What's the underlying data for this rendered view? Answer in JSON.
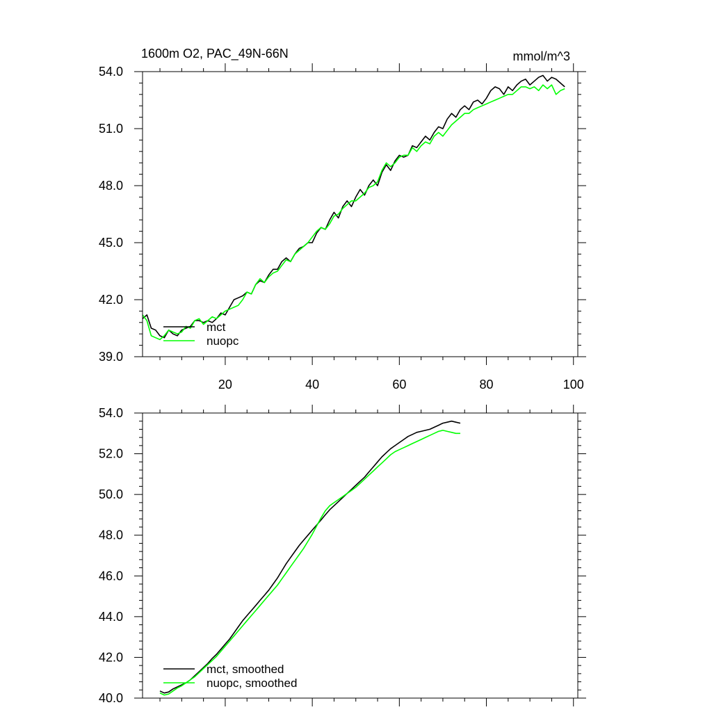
{
  "figure": {
    "title_left": "1600m O2, PAC_49N-66N",
    "title_right": "mmol/m^3"
  },
  "chart_data": [
    {
      "type": "line",
      "panel": "top",
      "xlim": [
        1,
        101
      ],
      "ylim": [
        39,
        54
      ],
      "x_ticks": [
        20,
        40,
        60,
        80,
        100
      ],
      "y_ticks": [
        39,
        42,
        45,
        48,
        51,
        54
      ],
      "y_tick_labels": [
        "39.0",
        "42.0",
        "45.0",
        "48.0",
        "51.0",
        "54.0"
      ],
      "legend_position": "bottom-left",
      "series": [
        {
          "name": "mct",
          "color": "#000000",
          "x_start": 1,
          "values": [
            41.0,
            41.2,
            40.5,
            40.4,
            40.1,
            40.0,
            40.4,
            40.2,
            40.1,
            40.4,
            40.5,
            40.6,
            40.9,
            40.9,
            40.8,
            40.9,
            40.8,
            41.0,
            41.3,
            41.2,
            41.6,
            42.0,
            42.1,
            42.2,
            42.4,
            42.3,
            42.8,
            43.0,
            42.9,
            43.3,
            43.6,
            43.6,
            44.0,
            44.2,
            44.0,
            44.4,
            44.7,
            44.8,
            45.0,
            45.0,
            45.5,
            45.8,
            45.7,
            46.2,
            46.6,
            46.3,
            46.9,
            47.2,
            46.9,
            47.4,
            47.8,
            47.5,
            48.0,
            48.3,
            48.0,
            48.7,
            49.1,
            48.8,
            49.3,
            49.6,
            49.5,
            49.6,
            50.1,
            50.0,
            50.3,
            50.6,
            50.4,
            50.8,
            51.1,
            51.0,
            51.5,
            51.8,
            51.6,
            52.0,
            52.2,
            52.0,
            52.4,
            52.5,
            52.3,
            52.6,
            53.0,
            53.2,
            53.1,
            52.8,
            53.2,
            53.0,
            53.3,
            53.5,
            53.6,
            53.3,
            53.5,
            53.7,
            53.8,
            53.5,
            53.7,
            53.6,
            53.4,
            53.2
          ]
        },
        {
          "name": "nuopc",
          "color": "#00ff00",
          "x_start": 1,
          "values": [
            41.2,
            40.9,
            40.1,
            40.0,
            39.9,
            40.1,
            40.4,
            40.3,
            40.2,
            40.3,
            40.6,
            40.5,
            40.9,
            41.0,
            40.7,
            40.9,
            41.1,
            41.0,
            41.2,
            41.4,
            41.5,
            41.6,
            41.7,
            42.0,
            42.4,
            42.3,
            42.8,
            43.1,
            42.9,
            43.2,
            43.4,
            43.5,
            43.8,
            44.1,
            44.0,
            44.4,
            44.6,
            44.8,
            45.0,
            45.3,
            45.6,
            45.8,
            45.7,
            46.0,
            46.4,
            46.5,
            46.8,
            47.0,
            47.2,
            47.2,
            47.4,
            47.6,
            47.9,
            48.0,
            48.2,
            48.8,
            49.2,
            49.0,
            49.2,
            49.5,
            49.6,
            49.6,
            50.0,
            49.8,
            50.1,
            50.3,
            50.2,
            50.6,
            50.8,
            50.6,
            50.9,
            51.2,
            51.4,
            51.6,
            51.8,
            51.8,
            52.0,
            52.1,
            52.2,
            52.3,
            52.4,
            52.5,
            52.6,
            52.7,
            52.8,
            52.8,
            53.0,
            53.2,
            53.2,
            53.1,
            53.2,
            53.0,
            53.3,
            53.1,
            53.3,
            52.8,
            53.0,
            53.1
          ]
        }
      ]
    },
    {
      "type": "line",
      "panel": "bottom",
      "xlim": [
        1,
        101
      ],
      "ylim": [
        40,
        54
      ],
      "x_ticks": [
        20,
        40,
        60,
        80,
        100
      ],
      "y_ticks": [
        40,
        42,
        44,
        46,
        48,
        50,
        52,
        54
      ],
      "y_tick_labels": [
        "40.0",
        "42.0",
        "44.0",
        "46.0",
        "48.0",
        "50.0",
        "52.0",
        "54.0"
      ],
      "legend_position": "bottom-left",
      "series": [
        {
          "name": "mct, smoothed",
          "color": "#000000",
          "x_start": 5,
          "values": [
            40.35,
            40.25,
            40.3,
            40.45,
            40.55,
            40.65,
            40.75,
            40.9,
            41.1,
            41.3,
            41.5,
            41.7,
            41.95,
            42.15,
            42.4,
            42.65,
            42.9,
            43.2,
            43.5,
            43.8,
            44.05,
            44.3,
            44.55,
            44.8,
            45.05,
            45.3,
            45.6,
            45.9,
            46.25,
            46.6,
            46.9,
            47.2,
            47.5,
            47.75,
            48.0,
            48.25,
            48.5,
            48.75,
            49.0,
            49.25,
            49.45,
            49.65,
            49.85,
            50.05,
            50.25,
            50.45,
            50.65,
            50.85,
            51.1,
            51.35,
            51.6,
            51.85,
            52.05,
            52.25,
            52.4,
            52.55,
            52.7,
            52.85,
            52.95,
            53.05,
            53.1,
            53.15,
            53.2,
            53.3,
            53.4,
            53.5,
            53.55,
            53.6,
            53.55,
            53.5
          ]
        },
        {
          "name": "nuopc, smoothed",
          "color": "#00ff00",
          "x_start": 5,
          "values": [
            40.25,
            40.15,
            40.2,
            40.35,
            40.5,
            40.6,
            40.75,
            40.9,
            41.05,
            41.25,
            41.45,
            41.65,
            41.85,
            42.05,
            42.3,
            42.55,
            42.8,
            43.05,
            43.3,
            43.55,
            43.8,
            44.05,
            44.3,
            44.55,
            44.8,
            45.05,
            45.3,
            45.55,
            45.85,
            46.15,
            46.45,
            46.75,
            47.05,
            47.35,
            47.7,
            48.05,
            48.45,
            48.85,
            49.2,
            49.45,
            49.6,
            49.75,
            49.9,
            50.05,
            50.2,
            50.35,
            50.55,
            50.75,
            50.95,
            51.15,
            51.35,
            51.55,
            51.75,
            51.95,
            52.1,
            52.2,
            52.3,
            52.4,
            52.5,
            52.6,
            52.7,
            52.8,
            52.9,
            53.0,
            53.1,
            53.15,
            53.1,
            53.05,
            53.0,
            53.0
          ]
        }
      ]
    }
  ]
}
